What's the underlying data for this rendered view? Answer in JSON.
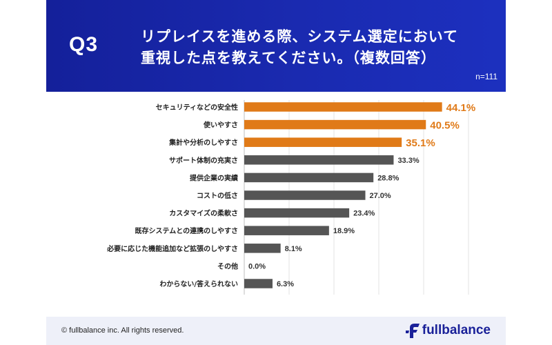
{
  "header": {
    "q_label": "Q3",
    "title_line1": "リプレイスを進める際、システム選定において",
    "title_line2": "重視した点を教えてください。（複数回答）",
    "sample_size": "n=111"
  },
  "colors": {
    "header_bg": "#1a23a8",
    "highlight": "#e07a18",
    "bar_default": "#555555",
    "footer_bg": "#eef0f9",
    "brand": "#1a2199"
  },
  "chart_data": {
    "type": "bar",
    "orientation": "horizontal",
    "categories": [
      "セキュリティなどの安全性",
      "使いやすさ",
      "集計や分析のしやすさ",
      "サポート体制の充実さ",
      "提供企業の実績",
      "コストの低さ",
      "カスタマイズの柔軟さ",
      "既存システムとの連携のしやすさ",
      "必要に応じた機能追加など拡張のしやすさ",
      "その他",
      "わからない/答えられない"
    ],
    "values": [
      44.1,
      40.5,
      35.1,
      33.3,
      28.8,
      27.0,
      23.4,
      18.9,
      8.1,
      0.0,
      6.3
    ],
    "value_labels": [
      "44.1%",
      "40.5%",
      "35.1%",
      "33.3%",
      "28.8%",
      "27.0%",
      "23.4%",
      "18.9%",
      "8.1%",
      "0.0%",
      "6.3%"
    ],
    "highlighted": [
      true,
      true,
      true,
      false,
      false,
      false,
      false,
      false,
      false,
      false,
      false
    ],
    "xlim": [
      0,
      50
    ],
    "grid": true
  },
  "footer": {
    "copyright": "© fullbalance inc. All rights reserved.",
    "logo_text": "fullbalance",
    "logo_icon": "fullbalance-f-logo-icon"
  }
}
